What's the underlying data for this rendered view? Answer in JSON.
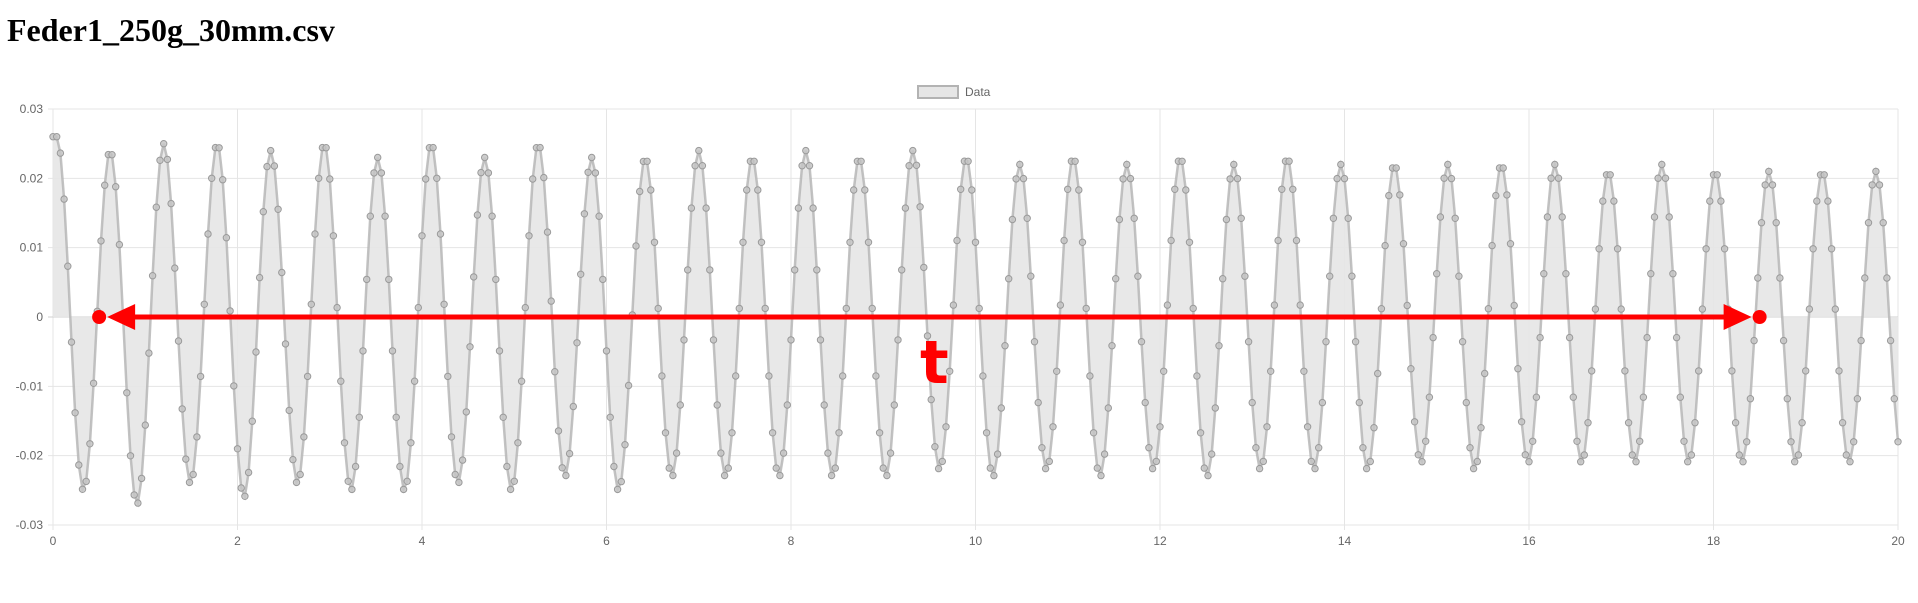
{
  "page": {
    "title": "Feder1_250g_30mm.csv"
  },
  "chart_data": {
    "type": "line",
    "title": "",
    "xlabel": "",
    "ylabel": "",
    "xlim": [
      0,
      20
    ],
    "ylim": [
      -0.03,
      0.03
    ],
    "xticks": [
      0,
      2,
      4,
      6,
      8,
      10,
      12,
      14,
      16,
      18,
      20
    ],
    "yticks": [
      0.03,
      0.02,
      0.01,
      0,
      -0.01,
      -0.02,
      -0.03
    ],
    "xtick_labels": [
      "0",
      "2",
      "4",
      "6",
      "8",
      "10",
      "12",
      "14",
      "16",
      "18",
      "20"
    ],
    "ytick_labels": [
      "0.03",
      "0.02",
      "0.01",
      "0",
      "-0.01",
      "-0.02",
      "-0.03"
    ],
    "grid": true,
    "legend": {
      "position": "top-center"
    },
    "series": [
      {
        "name": "Data",
        "fill": true,
        "color": "#b3b3b3",
        "fill_color": "#e6e6e6",
        "sampling_interval": 0.04,
        "duration": 20,
        "period": 0.58,
        "phase_start": 0,
        "peaks": [
          [
            0.04,
            0.026
          ],
          [
            0.62,
            0.024
          ],
          [
            1.2,
            0.025
          ],
          [
            1.78,
            0.025
          ],
          [
            2.36,
            0.024
          ],
          [
            2.94,
            0.025
          ],
          [
            3.52,
            0.023
          ],
          [
            4.1,
            0.025
          ],
          [
            4.68,
            0.023
          ],
          [
            5.26,
            0.025
          ],
          [
            5.84,
            0.023
          ],
          [
            6.42,
            0.023
          ],
          [
            7.0,
            0.024
          ],
          [
            7.58,
            0.023
          ],
          [
            8.16,
            0.024
          ],
          [
            8.74,
            0.023
          ],
          [
            9.32,
            0.024
          ],
          [
            9.9,
            0.023
          ],
          [
            10.48,
            0.022
          ],
          [
            11.06,
            0.023
          ],
          [
            11.64,
            0.022
          ],
          [
            12.22,
            0.023
          ],
          [
            12.8,
            0.022
          ],
          [
            13.38,
            0.023
          ],
          [
            13.96,
            0.022
          ],
          [
            14.54,
            0.022
          ],
          [
            15.12,
            0.022
          ],
          [
            15.7,
            0.022
          ],
          [
            16.28,
            0.022
          ],
          [
            16.86,
            0.021
          ],
          [
            17.44,
            0.022
          ],
          [
            18.02,
            0.021
          ],
          [
            18.6,
            0.021
          ],
          [
            19.18,
            0.021
          ],
          [
            19.76,
            0.021
          ]
        ],
        "troughs": [
          [
            0.33,
            -0.025
          ],
          [
            0.91,
            -0.027
          ],
          [
            1.49,
            -0.024
          ],
          [
            2.07,
            -0.026
          ],
          [
            2.65,
            -0.024
          ],
          [
            3.23,
            -0.025
          ],
          [
            3.81,
            -0.025
          ],
          [
            4.39,
            -0.024
          ],
          [
            4.97,
            -0.025
          ],
          [
            5.55,
            -0.023
          ],
          [
            6.13,
            -0.025
          ],
          [
            6.71,
            -0.023
          ],
          [
            7.29,
            -0.023
          ],
          [
            7.87,
            -0.023
          ],
          [
            8.45,
            -0.023
          ],
          [
            9.03,
            -0.023
          ],
          [
            9.61,
            -0.022
          ],
          [
            10.19,
            -0.023
          ],
          [
            10.77,
            -0.022
          ],
          [
            11.35,
            -0.023
          ],
          [
            11.93,
            -0.022
          ],
          [
            12.51,
            -0.023
          ],
          [
            13.09,
            -0.022
          ],
          [
            13.67,
            -0.022
          ],
          [
            14.25,
            -0.022
          ],
          [
            14.83,
            -0.021
          ],
          [
            15.41,
            -0.022
          ],
          [
            15.99,
            -0.021
          ],
          [
            16.57,
            -0.021
          ],
          [
            17.15,
            -0.021
          ],
          [
            17.73,
            -0.021
          ],
          [
            18.31,
            -0.021
          ],
          [
            18.89,
            -0.021
          ],
          [
            19.47,
            -0.021
          ]
        ]
      }
    ],
    "annotation": {
      "label": "t",
      "color": "#ff0000",
      "x_start": 0.5,
      "x_end": 18.5,
      "y": 0
    }
  }
}
